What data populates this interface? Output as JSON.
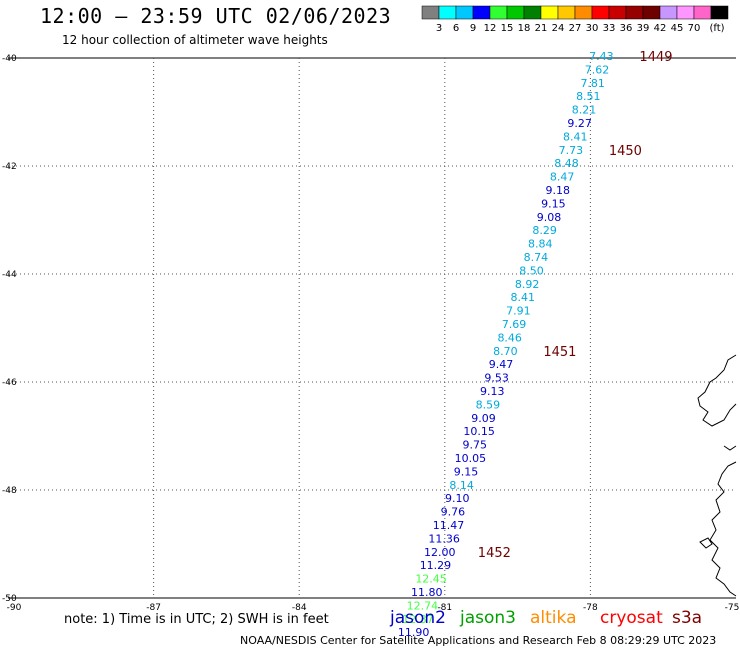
{
  "title": "12:00 – 23:59 UTC 02/06/2023",
  "subtitle": "12 hour collection of altimeter wave heights",
  "note": "note:  1) Time is in UTC;  2) SWH is in feet",
  "credit": "NOAA/NESDIS Center for Satellite Applications and Research    Feb  8 08:29:29 UTC 2023",
  "colorbar": {
    "unit": "(ft)",
    "colors": [
      "#808080",
      "#00ffff",
      "#00c8ff",
      "#0000ff",
      "#32ff32",
      "#00c800",
      "#008000",
      "#ffff00",
      "#ffc800",
      "#ff8c00",
      "#ff0000",
      "#c80000",
      "#960000",
      "#6e0000",
      "#c896ff",
      "#ff96ff",
      "#ff64c8",
      "#000000"
    ],
    "labels": [
      "3",
      "6",
      "9",
      "12",
      "15",
      "18",
      "21",
      "24",
      "27",
      "30",
      "33",
      "36",
      "39",
      "42",
      "45",
      "70"
    ]
  },
  "axes": {
    "lon_ticks": [
      "-90",
      "-87",
      "-84",
      "-81",
      "-78",
      "-75"
    ],
    "lat_ticks": [
      "40",
      "42",
      "44",
      "46",
      "48",
      "50"
    ],
    "lon_range": [
      -90,
      -75
    ],
    "lat_range": [
      -40,
      -50
    ]
  },
  "satellites": [
    {
      "name": "jason2",
      "color": "#0000cd"
    },
    {
      "name": "jason3",
      "color": "#00a000"
    },
    {
      "name": "altika",
      "color": "#ff8c00"
    },
    {
      "name": "cryosat",
      "color": "#ff0000"
    },
    {
      "name": "s3a",
      "color": "#800000"
    }
  ],
  "track": [
    {
      "lon": -78.7,
      "lat": -40.0,
      "v": "7.43",
      "c": "#00aadd"
    },
    {
      "lon": -78.79,
      "lat": -40.28,
      "v": "7.62",
      "c": "#00aadd"
    },
    {
      "lon": -78.88,
      "lat": -40.56,
      "v": "7.81",
      "c": "#00aadd"
    },
    {
      "lon": -78.97,
      "lat": -40.84,
      "v": "8.51",
      "c": "#00aadd"
    },
    {
      "lon": -79.06,
      "lat": -41.12,
      "v": "8.21",
      "c": "#00aadd"
    },
    {
      "lon": -79.15,
      "lat": -41.4,
      "v": "9.27",
      "c": "#0000cd"
    },
    {
      "lon": -79.24,
      "lat": -41.68,
      "v": "8.41",
      "c": "#00aadd"
    },
    {
      "lon": -79.33,
      "lat": -41.96,
      "v": "7.73",
      "c": "#00aadd"
    },
    {
      "lon": -79.42,
      "lat": -42.24,
      "v": "8.48",
      "c": "#00aadd"
    },
    {
      "lon": -79.51,
      "lat": -42.52,
      "v": "8.47",
      "c": "#00aadd"
    },
    {
      "lon": -79.6,
      "lat": -42.8,
      "v": "9.18",
      "c": "#0000cd"
    },
    {
      "lon": -79.69,
      "lat": -43.08,
      "v": "9.15",
      "c": "#0000cd"
    },
    {
      "lon": -79.78,
      "lat": -43.36,
      "v": "9.08",
      "c": "#0000cd"
    },
    {
      "lon": -79.87,
      "lat": -43.64,
      "v": "8.29",
      "c": "#00aadd"
    },
    {
      "lon": -79.96,
      "lat": -43.92,
      "v": "8.84",
      "c": "#00aadd"
    },
    {
      "lon": -80.05,
      "lat": -44.2,
      "v": "8.74",
      "c": "#00aadd"
    },
    {
      "lon": -80.14,
      "lat": -44.48,
      "v": "8.50",
      "c": "#00aadd"
    },
    {
      "lon": -80.23,
      "lat": -44.76,
      "v": "8.92",
      "c": "#00aadd"
    },
    {
      "lon": -80.32,
      "lat": -45.04,
      "v": "8.41",
      "c": "#00aadd"
    },
    {
      "lon": -80.41,
      "lat": -45.32,
      "v": "7.91",
      "c": "#00aadd"
    },
    {
      "lon": -80.5,
      "lat": -45.6,
      "v": "7.69",
      "c": "#00aadd"
    },
    {
      "lon": -80.59,
      "lat": -45.88,
      "v": "8.46",
      "c": "#00aadd"
    },
    {
      "lon": -80.68,
      "lat": -46.16,
      "v": "8.70",
      "c": "#00aadd"
    },
    {
      "lon": -80.77,
      "lat": -46.44,
      "v": "9.47",
      "c": "#0000cd"
    },
    {
      "lon": -80.86,
      "lat": -46.72,
      "v": "9.53",
      "c": "#0000cd"
    },
    {
      "lon": -80.95,
      "lat": -47.0,
      "v": "9.13",
      "c": "#0000cd"
    },
    {
      "lon": -81.04,
      "lat": -47.28,
      "v": "8.59",
      "c": "#00aadd"
    },
    {
      "lon": -81.13,
      "lat": -47.56,
      "v": "9.09",
      "c": "#0000cd"
    },
    {
      "lon": -81.22,
      "lat": -47.84,
      "v": "10.15",
      "c": "#0000cd"
    },
    {
      "lon": -81.31,
      "lat": -48.12,
      "v": "9.75",
      "c": "#0000cd"
    },
    {
      "lon": -81.4,
      "lat": -48.4,
      "v": "10.05",
      "c": "#0000cd"
    },
    {
      "lon": -81.49,
      "lat": -48.68,
      "v": "9.15",
      "c": "#0000cd"
    },
    {
      "lon": -81.58,
      "lat": -48.96,
      "v": "8.14",
      "c": "#00aadd"
    },
    {
      "lon": -81.67,
      "lat": -49.24,
      "v": "9.10",
      "c": "#0000cd"
    },
    {
      "lon": -81.76,
      "lat": -49.52,
      "v": "9.76",
      "c": "#0000cd"
    },
    {
      "lon": -81.85,
      "lat": -49.8,
      "v": "11.47",
      "c": "#0000cd"
    },
    {
      "lon": -81.94,
      "lat": -50.08,
      "v": "11.36",
      "c": "#0000cd"
    },
    {
      "lon": -82.03,
      "lat": -50.36,
      "v": "12.00",
      "c": "#0000cd"
    },
    {
      "lon": -82.12,
      "lat": -50.64,
      "v": "11.29",
      "c": "#0000cd"
    },
    {
      "lon": -82.21,
      "lat": -50.92,
      "v": "12.45",
      "c": "#44ff44"
    },
    {
      "lon": -82.3,
      "lat": -51.2,
      "v": "11.80",
      "c": "#0000cd"
    },
    {
      "lon": -82.39,
      "lat": -51.48,
      "v": "12.74",
      "c": "#44ff44"
    },
    {
      "lon": -82.48,
      "lat": -51.76,
      "v": "12.37",
      "c": "#44ff44"
    },
    {
      "lon": -82.57,
      "lat": -52.04,
      "v": "11.90",
      "c": "#0000cd"
    }
  ],
  "time_labels": [
    {
      "v": "1449",
      "idx": 0
    },
    {
      "v": "1450",
      "idx": 7
    },
    {
      "v": "1451",
      "idx": 22
    },
    {
      "v": "1452",
      "idx": 37
    }
  ]
}
